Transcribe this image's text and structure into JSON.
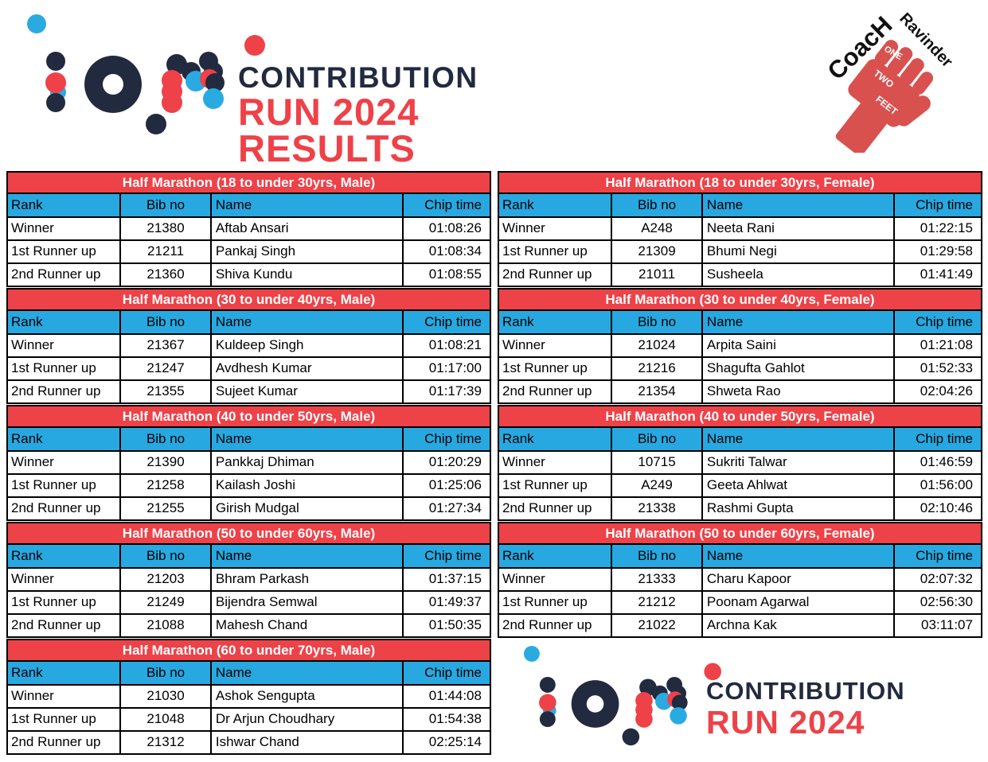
{
  "colors": {
    "table-red": "#ED4248",
    "table-blue": "#27A8E0",
    "navy": "#222A3F",
    "logo-red": "#EF4148",
    "logo-blue": "#29ABE2",
    "fist-red": "#D8514F"
  },
  "header": {
    "line1": "CONTRIBUTION",
    "line2": "RUN 2024",
    "line3": "RESULTS"
  },
  "footer": {
    "line1": "CONTRIBUTION",
    "line2": "RUN 2024"
  },
  "coach": {
    "name1": "CoacH",
    "name2": "Ravinder",
    "fist_words": [
      "ONE",
      "TWO",
      "FEET"
    ]
  },
  "columns": [
    "Rank",
    "Bib no",
    "Name",
    "Chip time"
  ],
  "tables": [
    {
      "title": "Half Marathon (18 to under 30yrs, Male)",
      "rows": [
        {
          "rank": "Winner",
          "bib": "21380",
          "name": "Aftab Ansari",
          "chip": "01:08:26"
        },
        {
          "rank": "1st Runner up",
          "bib": "21211",
          "name": "Pankaj Singh",
          "chip": "01:08:34"
        },
        {
          "rank": "2nd Runner up",
          "bib": "21360",
          "name": "Shiva Kundu",
          "chip": "01:08:55"
        }
      ]
    },
    {
      "title": "Half Marathon (18 to under 30yrs, Female)",
      "rows": [
        {
          "rank": "Winner",
          "bib": "A248",
          "name": "Neeta Rani",
          "chip": "01:22:15"
        },
        {
          "rank": "1st Runner up",
          "bib": "21309",
          "name": "Bhumi Negi",
          "chip": "01:29:58"
        },
        {
          "rank": "2nd Runner up",
          "bib": "21011",
          "name": "Susheela",
          "chip": "01:41:49"
        }
      ]
    },
    {
      "title": "Half Marathon (30 to under 40yrs, Male)",
      "rows": [
        {
          "rank": "Winner",
          "bib": "21367",
          "name": "Kuldeep Singh",
          "chip": "01:08:21"
        },
        {
          "rank": "1st Runner up",
          "bib": "21247",
          "name": "Avdhesh Kumar",
          "chip": "01:17:00"
        },
        {
          "rank": "2nd Runner up",
          "bib": "21355",
          "name": "Sujeet Kumar",
          "chip": "01:17:39"
        }
      ]
    },
    {
      "title": "Half Marathon (30 to under 40yrs, Female)",
      "rows": [
        {
          "rank": "Winner",
          "bib": "21024",
          "name": "Arpita Saini",
          "chip": "01:21:08"
        },
        {
          "rank": "1st Runner up",
          "bib": "21216",
          "name": "Shagufta Gahlot",
          "chip": "01:52:33"
        },
        {
          "rank": "2nd Runner up",
          "bib": "21354",
          "name": "Shweta Rao",
          "chip": "02:04:26"
        }
      ]
    },
    {
      "title": "Half Marathon (40 to under 50yrs, Male)",
      "rows": [
        {
          "rank": "Winner",
          "bib": "21390",
          "name": "Pankkaj Dhiman",
          "chip": "01:20:29"
        },
        {
          "rank": "1st Runner up",
          "bib": "21258",
          "name": "Kailash Joshi",
          "chip": "01:25:06"
        },
        {
          "rank": "2nd Runner up",
          "bib": "21255",
          "name": "Girish Mudgal",
          "chip": "01:27:34"
        }
      ]
    },
    {
      "title": "Half Marathon (40 to under 50yrs, Female)",
      "rows": [
        {
          "rank": "Winner",
          "bib": "10715",
          "name": "Sukriti Talwar",
          "chip": "01:46:59"
        },
        {
          "rank": "1st Runner up",
          "bib": "A249",
          "name": "Geeta Ahlwat",
          "chip": "01:56:00"
        },
        {
          "rank": "2nd Runner up",
          "bib": "21338",
          "name": "Rashmi Gupta",
          "chip": "02:10:46"
        }
      ]
    },
    {
      "title": "Half Marathon (50 to under 60yrs, Male)",
      "rows": [
        {
          "rank": "Winner",
          "bib": "21203",
          "name": "Bhram Parkash",
          "chip": "01:37:15"
        },
        {
          "rank": "1st Runner up",
          "bib": "21249",
          "name": "Bijendra Semwal",
          "chip": "01:49:37"
        },
        {
          "rank": "2nd Runner up",
          "bib": "21088",
          "name": "Mahesh Chand",
          "chip": "01:50:35"
        }
      ]
    },
    {
      "title": "Half Marathon (50 to under 60yrs, Female)",
      "rows": [
        {
          "rank": "Winner",
          "bib": "21333",
          "name": "Charu Kapoor",
          "chip": "02:07:32"
        },
        {
          "rank": "1st Runner up",
          "bib": "21212",
          "name": "Poonam Agarwal",
          "chip": "02:56:30"
        },
        {
          "rank": "2nd Runner up",
          "bib": "21022",
          "name": "Archna Kak",
          "chip": "03:11:07"
        }
      ]
    },
    {
      "title": "Half Marathon (60 to under 70yrs, Male)",
      "rows": [
        {
          "rank": "Winner",
          "bib": "21030",
          "name": "Ashok Sengupta",
          "chip": "01:44:08"
        },
        {
          "rank": "1st Runner up",
          "bib": "21048",
          "name": "Dr Arjun Choudhary",
          "chip": "01:54:38"
        },
        {
          "rank": "2nd Runner up",
          "bib": "21312",
          "name": "Ishwar Chand",
          "chip": "02:25:14"
        }
      ]
    }
  ]
}
